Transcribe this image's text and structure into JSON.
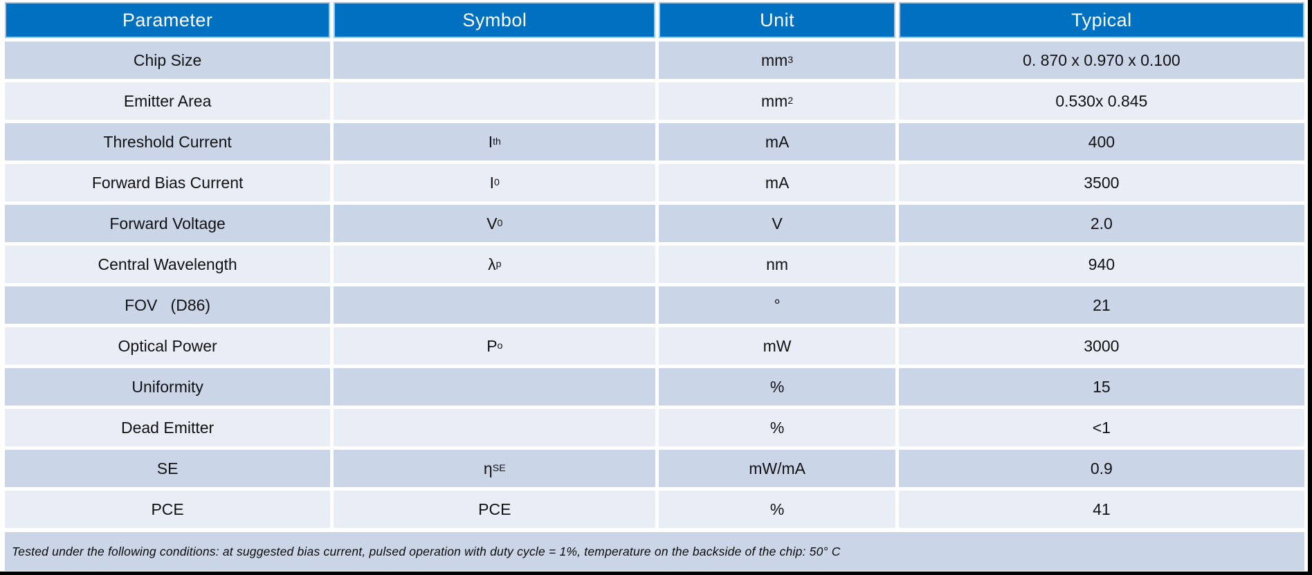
{
  "chart_data": {
    "type": "table",
    "columns": [
      "Parameter",
      "Symbol",
      "Unit",
      "Typical"
    ],
    "rows": [
      {
        "parameter": "Chip Size",
        "symbol": {
          "base": "",
          "sub": ""
        },
        "unit": {
          "base": "mm",
          "sup": "3"
        },
        "typical": "0. 870 x 0.970 x 0.100"
      },
      {
        "parameter": "Emitter Area",
        "symbol": {
          "base": "",
          "sub": ""
        },
        "unit": {
          "base": "mm",
          "sup": "2"
        },
        "typical": "0.530x 0.845"
      },
      {
        "parameter": "Threshold Current",
        "symbol": {
          "base": "I",
          "sub": "th"
        },
        "unit": {
          "base": "mA",
          "sup": ""
        },
        "typical": "400"
      },
      {
        "parameter": "Forward Bias Current",
        "symbol": {
          "base": "I",
          "sub": "0"
        },
        "unit": {
          "base": "mA",
          "sup": ""
        },
        "typical": "3500"
      },
      {
        "parameter": "Forward Voltage",
        "symbol": {
          "base": "V",
          "sub": "0"
        },
        "unit": {
          "base": "V",
          "sup": ""
        },
        "typical": "2.0"
      },
      {
        "parameter": "Central Wavelength",
        "symbol": {
          "base": "λ",
          "sub": "p"
        },
        "unit": {
          "base": "nm",
          "sup": ""
        },
        "typical": "940"
      },
      {
        "parameter": "FOV   (D86)",
        "symbol": {
          "base": "",
          "sub": ""
        },
        "unit": {
          "base": "°",
          "sup": ""
        },
        "typical": "21"
      },
      {
        "parameter": "Optical Power",
        "symbol": {
          "base": "P",
          "sub": "o"
        },
        "unit": {
          "base": "mW",
          "sup": ""
        },
        "typical": "3000"
      },
      {
        "parameter": "Uniformity",
        "symbol": {
          "base": "",
          "sub": ""
        },
        "unit": {
          "base": "%",
          "sup": ""
        },
        "typical": "15"
      },
      {
        "parameter": "Dead Emitter",
        "symbol": {
          "base": "",
          "sub": ""
        },
        "unit": {
          "base": "%",
          "sup": ""
        },
        "typical": "<1"
      },
      {
        "parameter": "SE",
        "symbol": {
          "base": "η",
          "sub": "SE"
        },
        "unit": {
          "base": "mW/mA",
          "sup": ""
        },
        "typical": "0.9"
      },
      {
        "parameter": "PCE",
        "symbol": {
          "base": "PCE",
          "sub": ""
        },
        "unit": {
          "base": "%",
          "sup": ""
        },
        "typical": "41"
      }
    ],
    "footnote": "Tested under the following conditions: at suggested bias current, pulsed operation with duty cycle = 1%, temperature on the backside of the chip: 50°  C",
    "legend_position": "none",
    "grid": "white separators between banded rows"
  },
  "colors": {
    "header_background": "#0070C0",
    "header_text": "#FFFFFF",
    "header_outline": "#A3C6E9",
    "band_dark": "#CBD5E8",
    "band_light": "#E9EDF5",
    "body_text": "#111111",
    "separator": "#FFFFFF",
    "frame_border": "#000000"
  }
}
